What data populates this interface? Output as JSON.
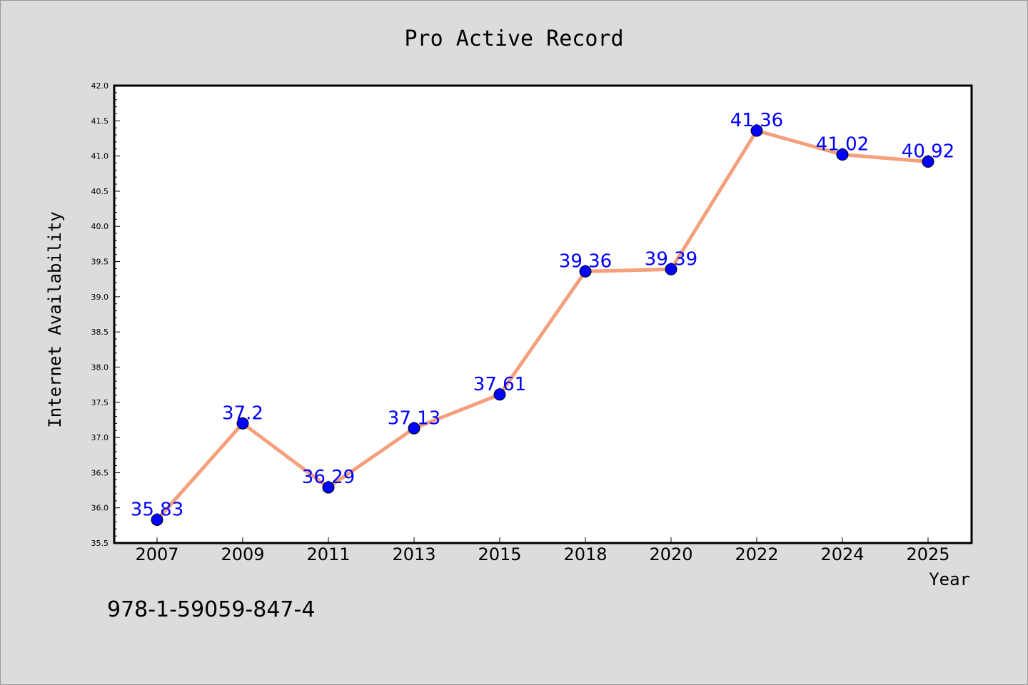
{
  "chart_data": {
    "type": "line",
    "title": "Pro Active Record",
    "xlabel": "Year",
    "ylabel": "Internet Availability",
    "categories": [
      "2007",
      "2009",
      "2011",
      "2013",
      "2015",
      "2018",
      "2020",
      "2022",
      "2024",
      "2025"
    ],
    "series": [
      {
        "values": [
          35.83,
          37.2,
          36.29,
          37.13,
          37.61,
          39.36,
          39.39,
          41.36,
          41.02,
          40.92
        ],
        "data_labels": [
          "35.83",
          "37.2",
          "36.29",
          "37.13",
          "37.61",
          "39.36",
          "39.39",
          "41.36",
          "41.02",
          "40.92"
        ]
      }
    ],
    "ylim": [
      35.5,
      42.0
    ],
    "yticks": [
      "35.5",
      "36.0",
      "36.5",
      "37.0",
      "37.5",
      "38.0",
      "38.5",
      "39.0",
      "39.5",
      "40.0",
      "40.5",
      "41.0",
      "41.5",
      "42.0"
    ],
    "grid": false,
    "legend": "none",
    "colors": {
      "line": "#f4a07c",
      "marker": "#0000ff",
      "label": "#0000ff",
      "background": "#dcdcdc",
      "plot_background": "#ffffff"
    }
  },
  "footer": {
    "text": "978-1-59059-847-4"
  }
}
